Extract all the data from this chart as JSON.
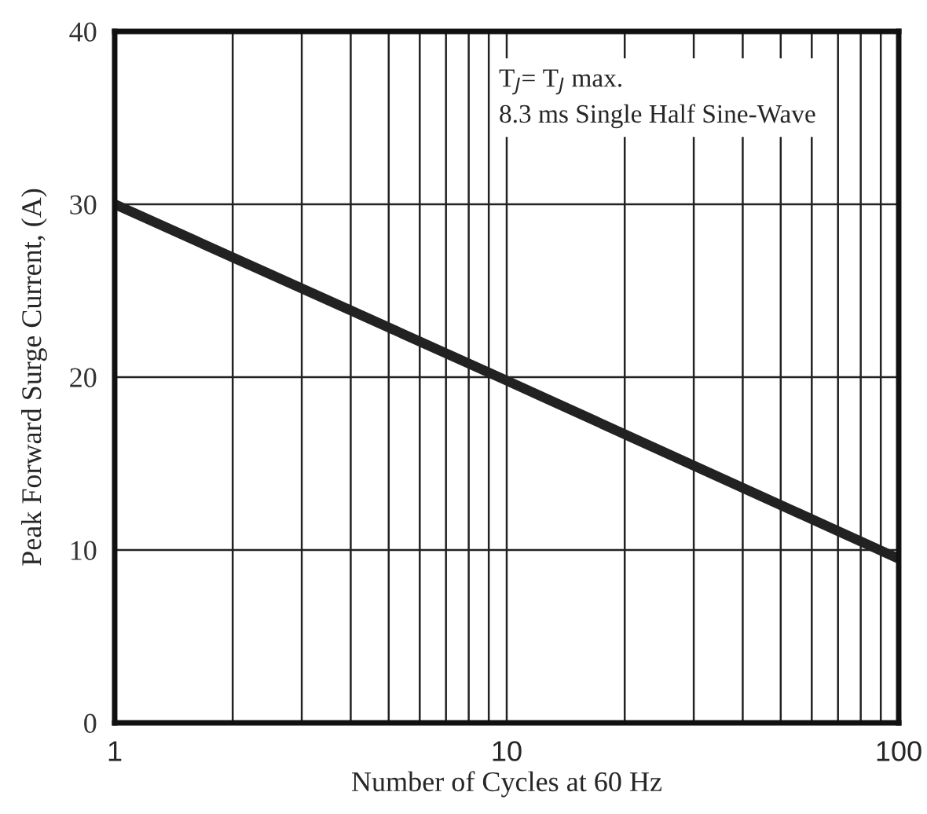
{
  "chart_data": {
    "type": "line",
    "xlabel": "Number of Cycles at 60 Hz",
    "ylabel": "Peak Forward Surge Current, (A)",
    "annotations": [
      "T$_{J}$= T$_{J}$ max.\n8.3 ms Single Half Sine-Wave"
    ],
    "x": [
      1,
      10,
      100
    ],
    "series": [
      {
        "color": "#222222",
        "values": [
          30,
          19.8,
          9.5
        ]
      }
    ],
    "log": "x",
    "xlim": [
      1,
      100
    ],
    "ylim": [
      0,
      40
    ],
    "xticks": [
      1,
      {
        "value": 2,
        "label": null
      },
      {
        "value": 3,
        "label": null
      },
      {
        "value": 4,
        "label": null
      },
      {
        "value": 5,
        "label": null
      },
      {
        "value": 6,
        "label": null
      },
      {
        "value": 7,
        "label": null
      },
      {
        "value": 8,
        "label": null
      },
      {
        "value": 9,
        "label": null
      },
      10,
      {
        "value": 20,
        "label": null
      },
      {
        "value": 30,
        "label": null
      },
      {
        "value": 40,
        "label": null
      },
      {
        "value": 50,
        "label": null
      },
      {
        "value": 60,
        "label": null
      },
      {
        "value": 70,
        "label": null
      },
      {
        "value": 80,
        "label": null
      },
      {
        "value": 90,
        "label": null
      },
      100
    ],
    "yticks": [
      0,
      10,
      20,
      30,
      40
    ],
    "grid": true,
    "line_style": "solid",
    "marker": "none"
  }
}
